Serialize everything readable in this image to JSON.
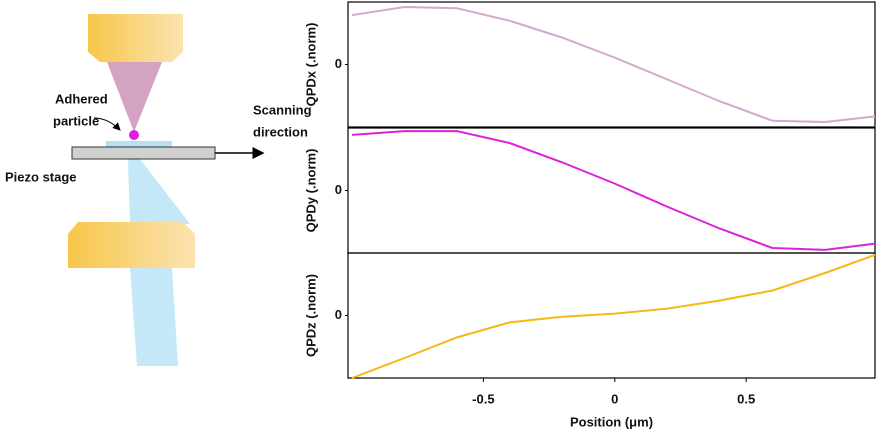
{
  "diagram": {
    "particle_label": [
      "Adhered",
      "particle"
    ],
    "scan_label": [
      "Scanning",
      "direction"
    ],
    "stage_label": "Piezo stage"
  },
  "chart_data": [
    {
      "type": "line",
      "ylabel": "QPDx (.norm)",
      "xlim": [
        -1.015,
        0.99
      ],
      "ylim": [
        -1,
        1
      ],
      "yticks": [
        0
      ],
      "series": [
        {
          "color": "#d5a8cb",
          "x": [
            -1.0,
            -0.8,
            -0.6,
            -0.4,
            -0.2,
            0,
            0.2,
            0.4,
            0.6,
            0.8,
            0.99
          ],
          "values": [
            0.79,
            0.92,
            0.9,
            0.7,
            0.43,
            0.11,
            -0.24,
            -0.59,
            -0.9,
            -0.92,
            -0.83
          ]
        }
      ]
    },
    {
      "type": "line",
      "ylabel": "QPDy (.norm)",
      "xlim": [
        -1.015,
        0.99
      ],
      "ylim": [
        -1,
        1
      ],
      "yticks": [
        0
      ],
      "series": [
        {
          "color": "#dd22dd",
          "x": [
            -1.0,
            -0.8,
            -0.6,
            -0.4,
            -0.2,
            0,
            0.2,
            0.4,
            0.6,
            0.8,
            0.99
          ],
          "values": [
            0.89,
            0.95,
            0.95,
            0.76,
            0.45,
            0.11,
            -0.26,
            -0.61,
            -0.92,
            -0.95,
            -0.85
          ]
        }
      ]
    },
    {
      "type": "line",
      "ylabel": "QPDz (.norm)",
      "xlabel": "Position (μm)",
      "xlim": [
        -1.015,
        0.99
      ],
      "ylim": [
        -1,
        1
      ],
      "yticks": [
        0
      ],
      "xticks": [
        -0.5,
        0,
        0.5
      ],
      "series": [
        {
          "color": "#f5b915",
          "x": [
            -1.0,
            -0.8,
            -0.6,
            -0.4,
            -0.2,
            0,
            0.2,
            0.4,
            0.6,
            0.8,
            0.99
          ],
          "values": [
            -1.0,
            -0.68,
            -0.35,
            -0.11,
            -0.02,
            0.03,
            0.11,
            0.24,
            0.4,
            0.68,
            0.97
          ]
        }
      ]
    }
  ]
}
